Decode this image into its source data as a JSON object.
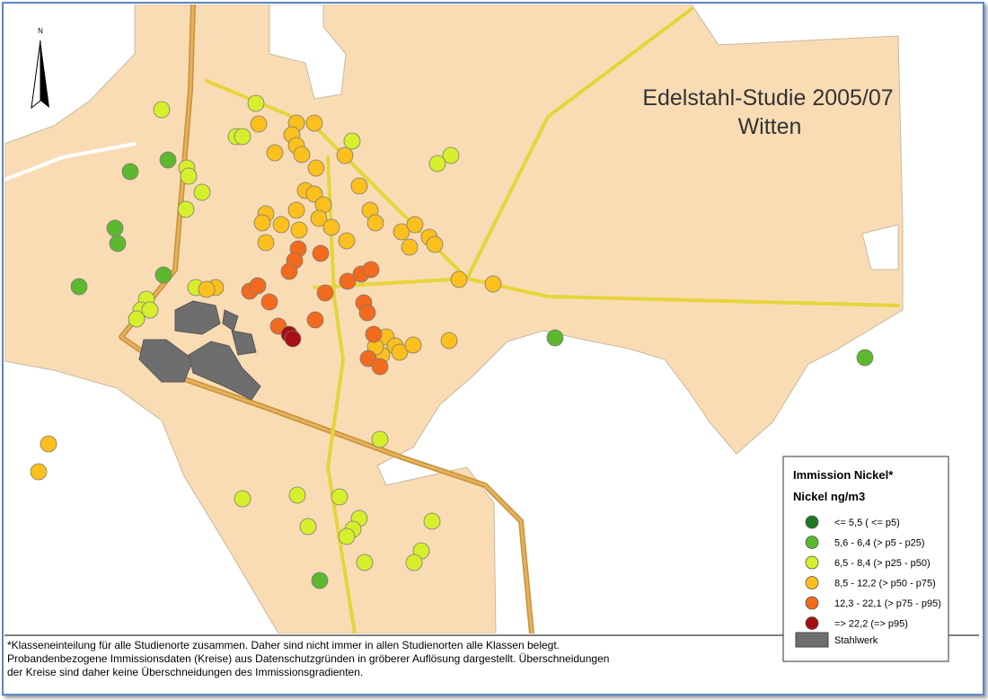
{
  "map": {
    "title": [
      "Edelstahl-Studie 2005/07",
      "Witten"
    ],
    "north": "N",
    "legend": {
      "title": "Immission Nickel*",
      "subtitle": "Nickel ng/m3",
      "items": [
        {
          "label": "<= 5,5 ( <= p5)",
          "color": "#1f7a1f"
        },
        {
          "label": "5,6 - 6,4 (> p5 - p25)",
          "color": "#5cb82e"
        },
        {
          "label": "6,5 - 8,4 (> p25 - p50)",
          "color": "#d6ef2c"
        },
        {
          "label": "8,5 - 12,2 (> p50 - p75)",
          "color": "#fbbf1e"
        },
        {
          "label": "12,3 - 22,1 (> p75 - p95)",
          "color": "#f26a1e"
        },
        {
          "label": "=> 22,2 (=> p95)",
          "color": "#a50f15"
        }
      ],
      "stahlwerk": {
        "label": "Stahlwerk",
        "color": "#6e6e6e"
      }
    },
    "footnote": [
      "*Klasseneinteilung für alle Studienorte zusammen. Daher sind nicht immer in allen Studienorten alle Klassen belegt.",
      "Probandenbezogene Immissionsdaten (Kreise) aus Datenschutzgründen in gröberer Auflösung dargestellt. Überschneidungen",
      "der Kreise sind daher keine Überschneidungen des Immissionsgradienten."
    ]
  }
}
